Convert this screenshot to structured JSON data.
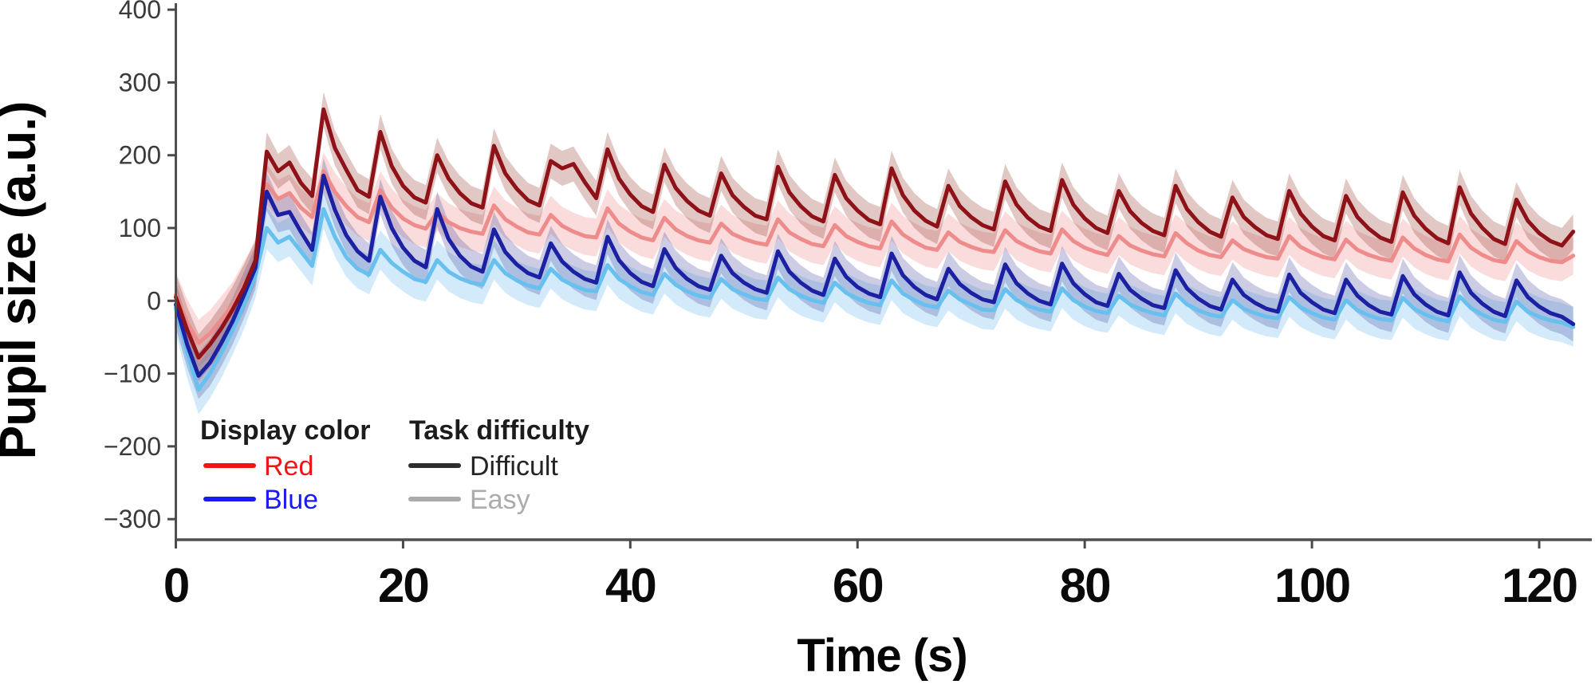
{
  "chart_data": {
    "type": "line",
    "title": "",
    "xlabel": "Time (s)",
    "ylabel": "Pupil size (a.u.)",
    "xlim": [
      0,
      123.5
    ],
    "ylim": [
      -327,
      400
    ],
    "xticks": [
      0,
      20,
      40,
      60,
      80,
      100,
      120
    ],
    "yticks": [
      400,
      300,
      200,
      100,
      0,
      -100,
      -200,
      -300
    ],
    "ytick_labels": [
      "400",
      "300",
      "200",
      "100",
      "0",
      "−100",
      "−200",
      "−300"
    ],
    "xtick_labels": [
      "0",
      "20",
      "40",
      "60",
      "80",
      "100",
      "120"
    ],
    "grid": false,
    "x_start": 0,
    "x_step_s": 1,
    "band_initial_until_s": 6,
    "series": [
      {
        "name": "Red · Easy",
        "display_color": "Red",
        "task_difficulty": "Easy",
        "color": "#ee8c8c",
        "band_color": "rgba(240,150,150,0.33)",
        "band_halfwidth_initial": 32,
        "band_halfwidth": 26,
        "values": [
          8,
          -30,
          -58,
          -45,
          -26,
          -6,
          22,
          50,
          160,
          140,
          148,
          128,
          115,
          178,
          150,
          130,
          115,
          108,
          152,
          128,
          113,
          104,
          99,
          122,
          108,
          100,
          95,
          92,
          131,
          112,
          102,
          94,
          91,
          118,
          103,
          95,
          89,
          87,
          127,
          106,
          95,
          87,
          83,
          114,
          98,
          89,
          83,
          80,
          106,
          92,
          85,
          80,
          77,
          112,
          94,
          85,
          78,
          75,
          104,
          89,
          81,
          75,
          72,
          109,
          91,
          81,
          73,
          70,
          94,
          81,
          74,
          69,
          67,
          97,
          82,
          74,
          68,
          65,
          98,
          82,
          73,
          67,
          63,
          89,
          76,
          69,
          64,
          61,
          93,
          79,
          69,
          63,
          60,
          83,
          71,
          65,
          60,
          58,
          89,
          74,
          66,
          60,
          57,
          84,
          70,
          63,
          58,
          55,
          87,
          72,
          63,
          57,
          54,
          91,
          73,
          63,
          56,
          53,
          82,
          68,
          60,
          55,
          53,
          62
        ]
      },
      {
        "name": "Blue · Easy",
        "display_color": "Blue",
        "task_difficulty": "Easy",
        "color": "#68c0ef",
        "band_color": "rgba(125,195,240,0.35)",
        "band_halfwidth_initial": 34,
        "band_halfwidth": 27,
        "values": [
          -10,
          -72,
          -122,
          -100,
          -72,
          -40,
          -5,
          35,
          100,
          80,
          88,
          68,
          48,
          126,
          88,
          60,
          44,
          36,
          70,
          52,
          40,
          30,
          26,
          56,
          40,
          31,
          25,
          22,
          56,
          38,
          28,
          21,
          17,
          44,
          29,
          21,
          15,
          13,
          49,
          30,
          20,
          12,
          8,
          37,
          22,
          13,
          7,
          4,
          30,
          16,
          9,
          3,
          1,
          32,
          16,
          7,
          1,
          -3,
          25,
          11,
          3,
          -3,
          -6,
          28,
          10,
          1,
          -6,
          -9,
          14,
          2,
          -5,
          -12,
          -13,
          16,
          1,
          -7,
          -12,
          -15,
          17,
          1,
          -8,
          -14,
          -17,
          7,
          -5,
          -12,
          -17,
          -20,
          10,
          -5,
          -13,
          -19,
          -22,
          1,
          -11,
          -17,
          -22,
          -24,
          5,
          -9,
          -17,
          -23,
          -26,
          1,
          -13,
          -20,
          -25,
          -27,
          4,
          -11,
          -19,
          -25,
          -28,
          6,
          -10,
          -19,
          -26,
          -29,
          -1,
          -15,
          -22,
          -27,
          -30,
          -36
        ]
      },
      {
        "name": "Blue · Difficult",
        "display_color": "Blue",
        "task_difficulty": "Difficult",
        "color": "#1c20a2",
        "band_color": "rgba(95,100,172,0.32)",
        "band_halfwidth_initial": 32,
        "band_halfwidth": 24,
        "values": [
          -5,
          -60,
          -103,
          -85,
          -58,
          -28,
          8,
          45,
          150,
          118,
          122,
          95,
          70,
          172,
          125,
          90,
          68,
          55,
          143,
          100,
          73,
          55,
          46,
          126,
          85,
          62,
          47,
          40,
          98,
          67,
          50,
          38,
          32,
          79,
          54,
          40,
          30,
          25,
          88,
          56,
          38,
          26,
          20,
          71,
          45,
          30,
          20,
          15,
          62,
          38,
          25,
          16,
          11,
          68,
          40,
          25,
          14,
          8,
          58,
          33,
          19,
          10,
          5,
          65,
          35,
          19,
          8,
          2,
          44,
          23,
          11,
          2,
          -2,
          50,
          24,
          10,
          0,
          -5,
          51,
          24,
          9,
          -2,
          -7,
          37,
          15,
          3,
          -6,
          -10,
          42,
          17,
          3,
          -7,
          -12,
          29,
          8,
          -3,
          -11,
          -15,
          36,
          11,
          -2,
          -12,
          -17,
          29,
          7,
          -6,
          -15,
          -19,
          34,
          9,
          -5,
          -15,
          -20,
          39,
          11,
          -4,
          -15,
          -21,
          28,
          5,
          -8,
          -17,
          -22,
          -32
        ]
      },
      {
        "name": "Red · Difficult",
        "display_color": "Red",
        "task_difficulty": "Difficult",
        "color": "#8e1217",
        "band_color": "rgba(155,72,62,0.30)",
        "band_halfwidth_initial": 32,
        "band_halfwidth": 24,
        "values": [
          5,
          -40,
          -78,
          -60,
          -38,
          -12,
          18,
          55,
          205,
          178,
          190,
          162,
          144,
          263,
          210,
          180,
          152,
          143,
          232,
          185,
          158,
          142,
          135,
          200,
          168,
          148,
          134,
          128,
          213,
          175,
          154,
          138,
          131,
          192,
          182,
          188,
          163,
          141,
          208,
          168,
          146,
          130,
          122,
          187,
          155,
          137,
          124,
          117,
          175,
          145,
          129,
          117,
          112,
          184,
          149,
          130,
          116,
          109,
          173,
          141,
          124,
          111,
          105,
          182,
          145,
          124,
          110,
          102,
          158,
          130,
          115,
          104,
          98,
          164,
          132,
          114,
          102,
          96,
          166,
          132,
          113,
          100,
          93,
          151,
          123,
          107,
          96,
          90,
          158,
          126,
          108,
          95,
          88,
          142,
          115,
          101,
          90,
          85,
          151,
          120,
          102,
          89,
          83,
          144,
          115,
          99,
          87,
          81,
          149,
          117,
          99,
          86,
          79,
          156,
          120,
          100,
          85,
          78,
          139,
          110,
          93,
          82,
          76,
          95
        ]
      }
    ],
    "legend": {
      "position": "lower-left inside axes",
      "groups": [
        {
          "title": "Display color",
          "items": [
            {
              "label": "Red",
              "color": "#f21414",
              "label_color": "#f21414"
            },
            {
              "label": "Blue",
              "color": "#1a1af2",
              "label_color": "#1a1af2"
            }
          ]
        },
        {
          "title": "Task difficulty",
          "items": [
            {
              "label": "Difficult",
              "color": "#2d2d2d",
              "label_color": "#242424"
            },
            {
              "label": "Easy",
              "color": "#ababab",
              "label_color": "#ababab"
            }
          ]
        }
      ]
    },
    "axis": {
      "spine_color": "#4f4f4f",
      "tick_color": "#4a4a4a",
      "ytick_label_color": "#3a3a3a",
      "xtick_label_color": "#0a0a0a"
    }
  }
}
